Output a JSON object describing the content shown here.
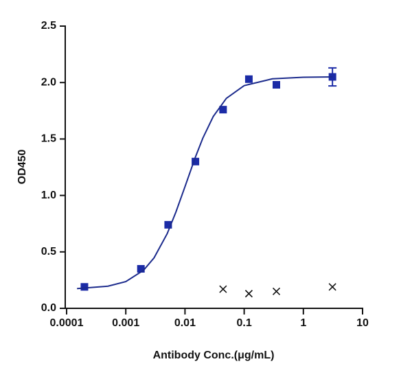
{
  "chart_data": {
    "type": "scatter",
    "x_label": "Antibody Conc.(μg/mL)",
    "y_label": "OD450",
    "xscale": "log",
    "xlim": [
      0.0001,
      10
    ],
    "xticks": [
      0.0001,
      0.001,
      0.01,
      0.1,
      1,
      10
    ],
    "ylim": [
      0,
      2.5
    ],
    "yticks": [
      {
        "value": 0,
        "label": "0.0"
      },
      0.5,
      {
        "value": 1,
        "label": "1.0"
      },
      1.5,
      {
        "value": 2,
        "label": "2.0"
      },
      2.5
    ],
    "series": [
      {
        "type": "scatter",
        "marker": "square",
        "color": "#1b2ba6",
        "x": [
          0.0002,
          0.0018,
          0.0052,
          0.015,
          0.044,
          0.12,
          0.35,
          3.1
        ],
        "values": [
          0.19,
          0.35,
          0.74,
          1.3,
          1.76,
          2.03,
          1.98,
          2.05
        ],
        "errors": [
          null,
          null,
          null,
          null,
          null,
          null,
          null,
          0.08
        ]
      },
      {
        "type": "line",
        "color": "#1b2a8c",
        "x": [
          0.00015,
          0.0005,
          0.001,
          0.002,
          0.003,
          0.005,
          0.007,
          0.01,
          0.015,
          0.02,
          0.03,
          0.05,
          0.1,
          0.3,
          1,
          3.1
        ],
        "values": [
          0.175,
          0.196,
          0.237,
          0.338,
          0.447,
          0.661,
          0.851,
          1.078,
          1.34,
          1.507,
          1.699,
          1.86,
          1.973,
          2.033,
          2.047,
          2.05
        ]
      },
      {
        "type": "scatter",
        "marker": "x",
        "color": "#111111",
        "x": [
          0.044,
          0.12,
          0.35,
          3.1
        ],
        "values": [
          0.17,
          0.13,
          0.15,
          0.19
        ]
      }
    ]
  }
}
